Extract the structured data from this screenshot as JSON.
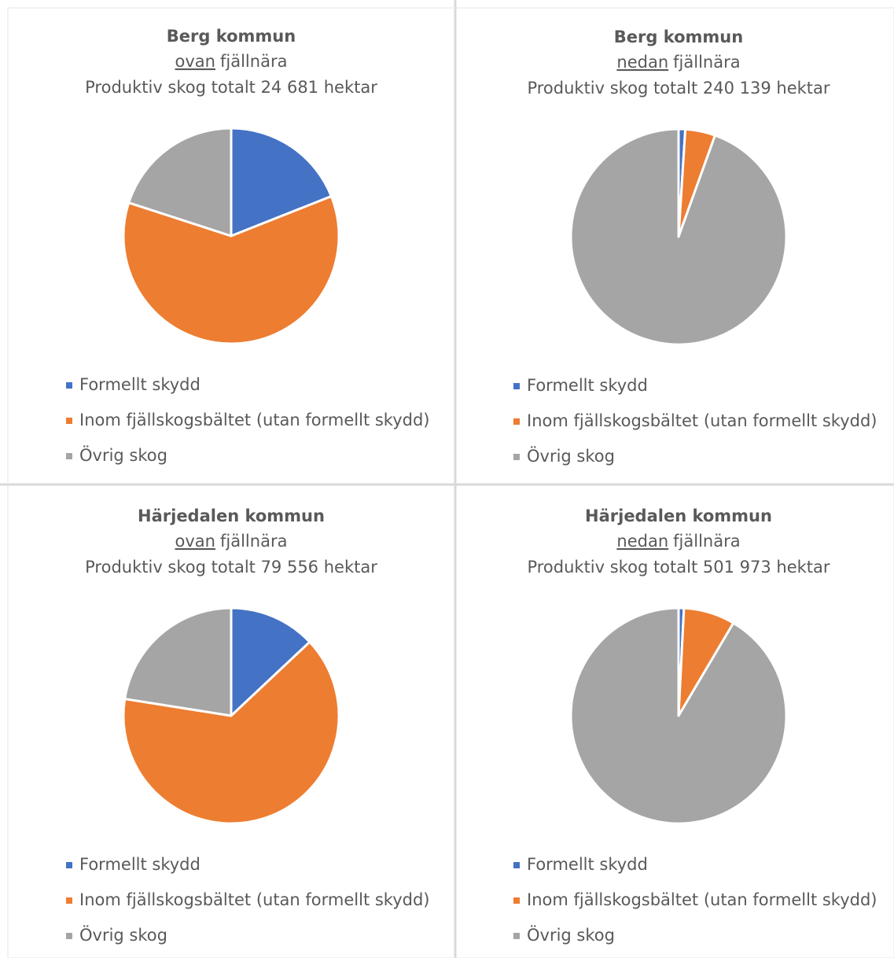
{
  "chart_data": [
    {
      "type": "pie",
      "title": "Berg kommun",
      "subtitle": {
        "underlined": "ovan",
        "text": "fjällnära"
      },
      "subtitle2": "Produktiv skog totalt 24 681 hektar",
      "categories": [
        "Formellt skydd",
        "Inom fjällskogsbältet (utan formellt skydd)",
        "Övrig skog"
      ],
      "values": [
        19,
        61,
        20
      ],
      "colors": [
        "#4472c4",
        "#ed7d31",
        "#a5a5a5"
      ]
    },
    {
      "type": "pie",
      "title": "Berg kommun",
      "subtitle": {
        "underlined": "nedan",
        "text": "fjällnära"
      },
      "subtitle2": "Produktiv skog totalt 240 139 hektar",
      "categories": [
        "Formellt skydd",
        "Inom fjällskogsbältet (utan formellt skydd)",
        "Övrig skog"
      ],
      "values": [
        1,
        4.5,
        94.5
      ],
      "colors": [
        "#4472c4",
        "#ed7d31",
        "#a5a5a5"
      ]
    },
    {
      "type": "pie",
      "title": "Härjedalen kommun",
      "subtitle": {
        "underlined": "ovan",
        "text": "fjällnära"
      },
      "subtitle2": "Produktiv skog totalt 79 556 hektar",
      "categories": [
        "Formellt skydd",
        "Inom fjällskogsbältet (utan formellt skydd)",
        "Övrig skog"
      ],
      "values": [
        13,
        64.5,
        22.5
      ],
      "colors": [
        "#4472c4",
        "#ed7d31",
        "#a5a5a5"
      ]
    },
    {
      "type": "pie",
      "title": "Härjedalen kommun",
      "subtitle": {
        "underlined": "nedan",
        "text": "fjällnära"
      },
      "subtitle2": "Produktiv skog totalt 501 973 hektar",
      "categories": [
        "Formellt skydd",
        "Inom fjällskogsbältet (utan formellt skydd)",
        "Övrig skog"
      ],
      "values": [
        0.8,
        7.7,
        91.5
      ],
      "colors": [
        "#4472c4",
        "#ed7d31",
        "#a5a5a5"
      ]
    }
  ]
}
